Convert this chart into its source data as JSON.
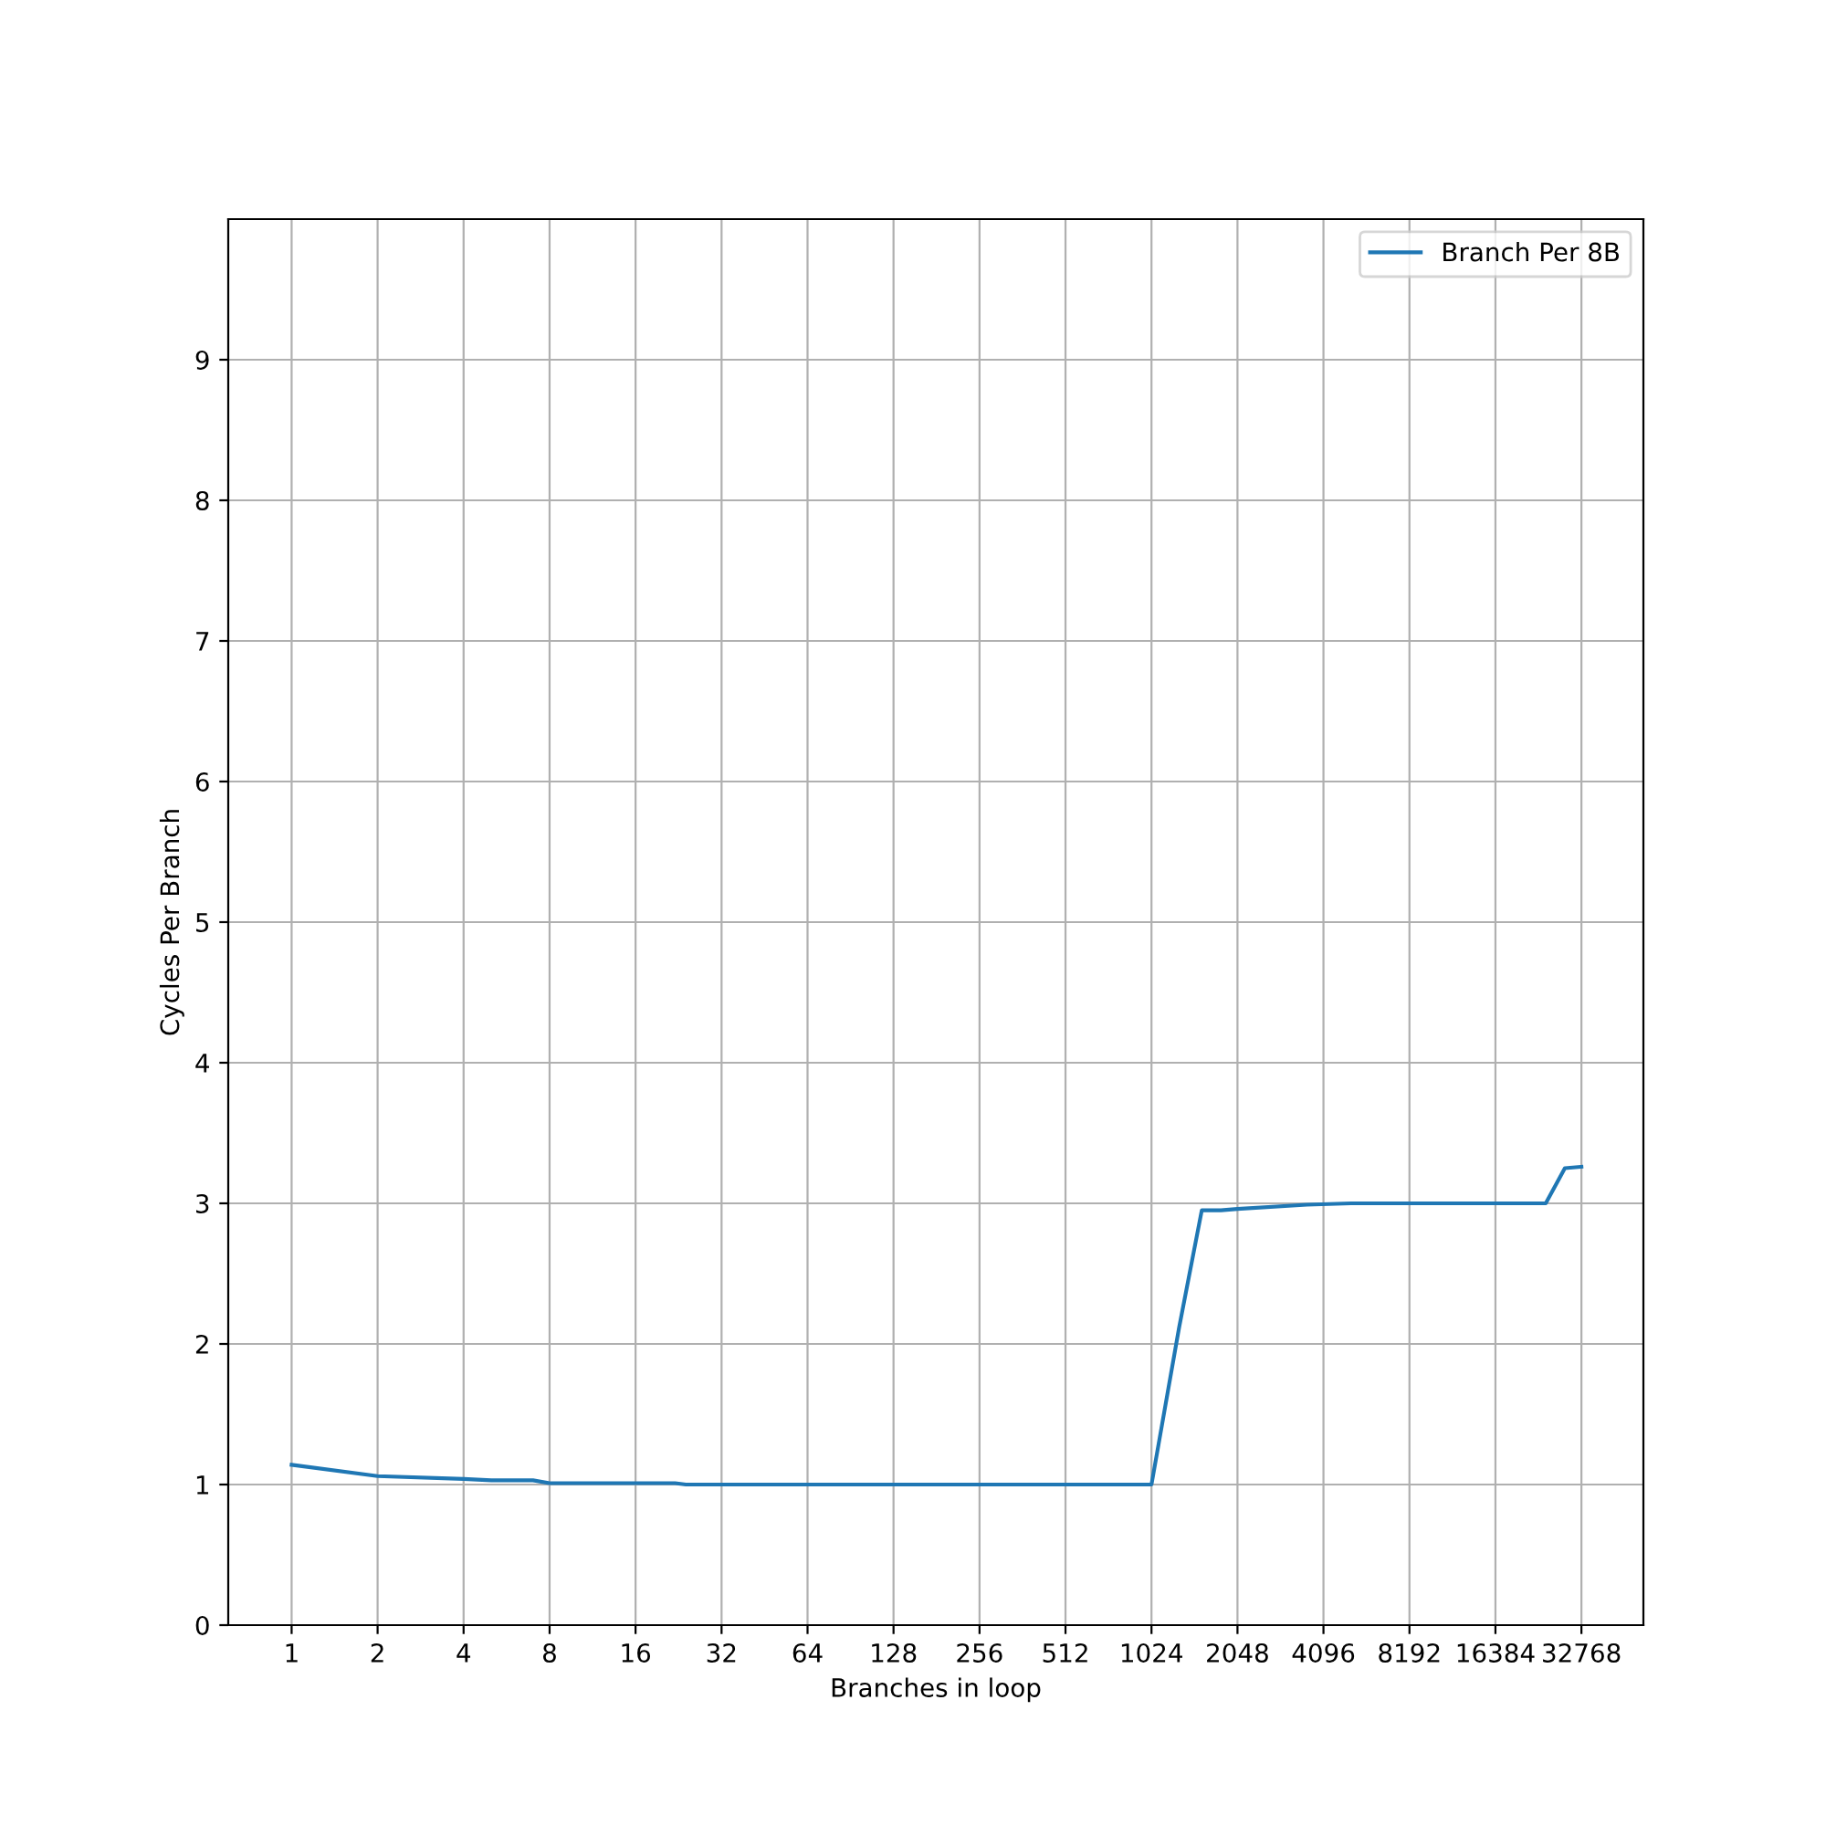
{
  "chart_data": {
    "type": "line",
    "xlabel": "Branches in loop",
    "ylabel": "Cycles Per Branch",
    "log": "x",
    "xlim": [
      0.6,
      54000
    ],
    "xticks": [
      1,
      2,
      4,
      8,
      16,
      32,
      64,
      128,
      256,
      512,
      1024,
      2048,
      4096,
      8192,
      16384,
      32768
    ],
    "ylim": [
      0,
      10
    ],
    "yticks": [
      0,
      1,
      2,
      3,
      4,
      5,
      6,
      7,
      8,
      9
    ],
    "grid": true,
    "legend": "top right",
    "series": [
      {
        "name": "Branch Per 8B",
        "color": "#1f77b4",
        "x": [
          1,
          2,
          4,
          5,
          7,
          8,
          22,
          24,
          1024,
          1280,
          1536,
          1792,
          2048,
          3584,
          5120,
          24576,
          28672,
          32768
        ],
        "values": [
          1.14,
          1.06,
          1.04,
          1.03,
          1.03,
          1.01,
          1.01,
          1.0,
          1.0,
          2.12,
          2.95,
          2.95,
          2.96,
          2.99,
          3.0,
          3.0,
          3.25,
          3.26
        ]
      }
    ]
  }
}
